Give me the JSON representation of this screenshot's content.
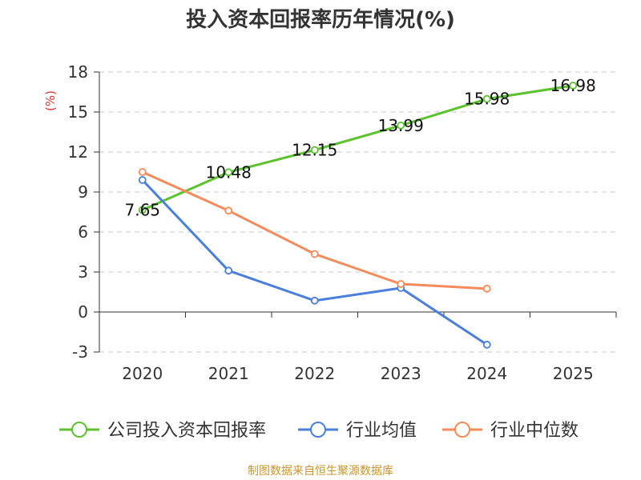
{
  "title": "投入资本回报率历年情况(%)",
  "footer": "制图数据来自恒生聚源数据库",
  "chart_data": {
    "type": "line",
    "title": "投入资本回报率历年情况(%)",
    "ylabel": "(%)",
    "xlabel": "",
    "categories": [
      "2020",
      "2021",
      "2022",
      "2023",
      "2024",
      "2025"
    ],
    "ylim": [
      -3,
      18
    ],
    "yticks": [
      -3,
      0,
      3,
      6,
      9,
      12,
      15,
      18
    ],
    "grid": true,
    "legend_position": "bottom",
    "series": [
      {
        "name": "公司投入资本回报率",
        "color": "#5cc22e",
        "values": [
          7.65,
          10.48,
          12.15,
          13.99,
          15.98,
          16.98
        ],
        "show_labels": true
      },
      {
        "name": "行业均值",
        "color": "#4a7fdb",
        "values": [
          9.9,
          3.1,
          0.85,
          1.8,
          -2.45,
          null
        ],
        "show_labels": false
      },
      {
        "name": "行业中位数",
        "color": "#f58a5a",
        "values": [
          10.5,
          7.6,
          4.35,
          2.1,
          1.75,
          null
        ],
        "show_labels": false
      }
    ]
  }
}
